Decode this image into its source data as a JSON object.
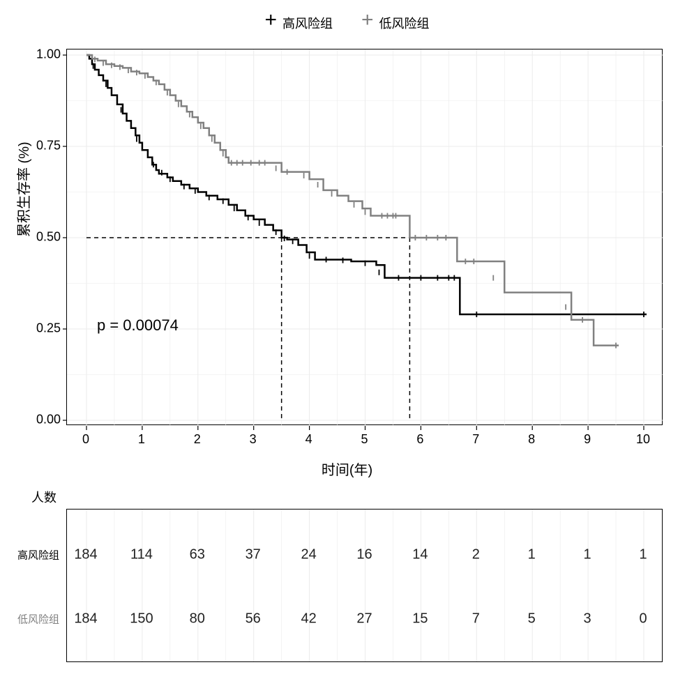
{
  "legend": {
    "items": [
      {
        "label": "高风险组",
        "color": "#000000"
      },
      {
        "label": "低风险组",
        "color": "#808080"
      }
    ]
  },
  "chart": {
    "type": "kaplan-meier",
    "x_label": "时间(年)",
    "y_label": "累积生存率 (%)",
    "label_fontsize": 20,
    "tick_fontsize": 18,
    "pvalue_text": "p = 0.00074",
    "pvalue_fontsize": 22,
    "pvalue_pos": {
      "x_year": 0.2,
      "y_prob": 0.26
    },
    "background_color": "#ffffff",
    "border_color": "#000000",
    "grid_color": "#ebebeb",
    "grid_width": 1,
    "line_width": 2.5,
    "censor_tick_height": 8,
    "xlim": [
      0,
      10
    ],
    "ylim": [
      0,
      1
    ],
    "xticks": [
      0,
      1,
      2,
      3,
      4,
      5,
      6,
      7,
      8,
      9,
      10
    ],
    "yticks": [
      0.0,
      0.25,
      0.5,
      0.75,
      1.0
    ],
    "ytick_labels": [
      "0.00",
      "0.25",
      "0.50",
      "0.75",
      "1.00"
    ],
    "xminor": [
      0.5,
      1.5,
      2.5,
      3.5,
      4.5,
      5.5,
      6.5,
      7.5,
      8.5,
      9.5
    ],
    "yminor": [
      0.125,
      0.375,
      0.625,
      0.875
    ],
    "median_lines": {
      "y": 0.5,
      "x_values": [
        3.5,
        5.8
      ],
      "color": "#000000",
      "dash": "6,5",
      "width": 1.5
    },
    "series": [
      {
        "name": "high_risk",
        "color": "#000000",
        "steps": [
          [
            0.0,
            1.0
          ],
          [
            0.05,
            0.99
          ],
          [
            0.1,
            0.975
          ],
          [
            0.15,
            0.96
          ],
          [
            0.22,
            0.945
          ],
          [
            0.3,
            0.93
          ],
          [
            0.38,
            0.91
          ],
          [
            0.45,
            0.89
          ],
          [
            0.55,
            0.865
          ],
          [
            0.65,
            0.84
          ],
          [
            0.72,
            0.82
          ],
          [
            0.8,
            0.8
          ],
          [
            0.88,
            0.78
          ],
          [
            0.95,
            0.76
          ],
          [
            1.0,
            0.74
          ],
          [
            1.1,
            0.72
          ],
          [
            1.18,
            0.7
          ],
          [
            1.25,
            0.685
          ],
          [
            1.3,
            0.675
          ],
          [
            1.45,
            0.665
          ],
          [
            1.55,
            0.655
          ],
          [
            1.7,
            0.645
          ],
          [
            1.85,
            0.635
          ],
          [
            2.0,
            0.625
          ],
          [
            2.15,
            0.615
          ],
          [
            2.35,
            0.605
          ],
          [
            2.55,
            0.59
          ],
          [
            2.7,
            0.575
          ],
          [
            2.85,
            0.56
          ],
          [
            3.0,
            0.55
          ],
          [
            3.2,
            0.535
          ],
          [
            3.35,
            0.52
          ],
          [
            3.5,
            0.5
          ],
          [
            3.6,
            0.495
          ],
          [
            3.8,
            0.48
          ],
          [
            3.95,
            0.46
          ],
          [
            4.1,
            0.44
          ],
          [
            4.4,
            0.44
          ],
          [
            4.75,
            0.435
          ],
          [
            5.2,
            0.425
          ],
          [
            5.35,
            0.39
          ],
          [
            5.9,
            0.39
          ],
          [
            6.5,
            0.39
          ],
          [
            6.7,
            0.29
          ],
          [
            7.5,
            0.29
          ],
          [
            8.5,
            0.29
          ],
          [
            10.05,
            0.29
          ]
        ],
        "censors": [
          [
            0.12,
            0.97
          ],
          [
            0.35,
            0.92
          ],
          [
            0.62,
            0.85
          ],
          [
            0.9,
            0.77
          ],
          [
            1.2,
            0.7
          ],
          [
            1.35,
            0.678
          ],
          [
            1.5,
            0.66
          ],
          [
            1.75,
            0.64
          ],
          [
            1.95,
            0.628
          ],
          [
            2.2,
            0.61
          ],
          [
            2.45,
            0.6
          ],
          [
            2.65,
            0.58
          ],
          [
            2.9,
            0.555
          ],
          [
            3.1,
            0.54
          ],
          [
            3.4,
            0.515
          ],
          [
            3.55,
            0.498
          ],
          [
            3.7,
            0.49
          ],
          [
            4.0,
            0.45
          ],
          [
            4.3,
            0.44
          ],
          [
            4.6,
            0.438
          ],
          [
            5.0,
            0.43
          ],
          [
            5.25,
            0.405
          ],
          [
            5.6,
            0.39
          ],
          [
            6.0,
            0.39
          ],
          [
            6.3,
            0.39
          ],
          [
            6.5,
            0.39
          ],
          [
            6.6,
            0.39
          ],
          [
            7.0,
            0.29
          ],
          [
            10.0,
            0.29
          ]
        ]
      },
      {
        "name": "low_risk",
        "color": "#808080",
        "steps": [
          [
            0.0,
            1.0
          ],
          [
            0.1,
            0.99
          ],
          [
            0.2,
            0.985
          ],
          [
            0.35,
            0.975
          ],
          [
            0.5,
            0.97
          ],
          [
            0.65,
            0.965
          ],
          [
            0.8,
            0.955
          ],
          [
            0.95,
            0.95
          ],
          [
            1.1,
            0.94
          ],
          [
            1.2,
            0.93
          ],
          [
            1.3,
            0.92
          ],
          [
            1.4,
            0.905
          ],
          [
            1.5,
            0.89
          ],
          [
            1.6,
            0.875
          ],
          [
            1.7,
            0.86
          ],
          [
            1.8,
            0.845
          ],
          [
            1.9,
            0.83
          ],
          [
            2.0,
            0.815
          ],
          [
            2.1,
            0.8
          ],
          [
            2.2,
            0.78
          ],
          [
            2.3,
            0.76
          ],
          [
            2.4,
            0.74
          ],
          [
            2.5,
            0.72
          ],
          [
            2.55,
            0.705
          ],
          [
            3.3,
            0.705
          ],
          [
            3.5,
            0.68
          ],
          [
            3.8,
            0.68
          ],
          [
            4.0,
            0.66
          ],
          [
            4.25,
            0.63
          ],
          [
            4.5,
            0.615
          ],
          [
            4.7,
            0.6
          ],
          [
            4.95,
            0.58
          ],
          [
            5.1,
            0.56
          ],
          [
            5.6,
            0.56
          ],
          [
            5.8,
            0.5
          ],
          [
            5.95,
            0.5
          ],
          [
            6.5,
            0.5
          ],
          [
            6.65,
            0.435
          ],
          [
            7.1,
            0.435
          ],
          [
            7.5,
            0.35
          ],
          [
            8.55,
            0.35
          ],
          [
            8.7,
            0.275
          ],
          [
            9.0,
            0.275
          ],
          [
            9.1,
            0.205
          ],
          [
            9.55,
            0.205
          ]
        ],
        "censors": [
          [
            0.15,
            0.988
          ],
          [
            0.3,
            0.978
          ],
          [
            0.45,
            0.972
          ],
          [
            0.6,
            0.967
          ],
          [
            0.75,
            0.958
          ],
          [
            0.9,
            0.952
          ],
          [
            1.05,
            0.943
          ],
          [
            1.25,
            0.925
          ],
          [
            1.45,
            0.897
          ],
          [
            1.65,
            0.865
          ],
          [
            1.85,
            0.837
          ],
          [
            2.05,
            0.805
          ],
          [
            2.25,
            0.77
          ],
          [
            2.45,
            0.73
          ],
          [
            2.6,
            0.705
          ],
          [
            2.7,
            0.705
          ],
          [
            2.8,
            0.705
          ],
          [
            2.95,
            0.705
          ],
          [
            3.1,
            0.705
          ],
          [
            3.2,
            0.705
          ],
          [
            3.4,
            0.69
          ],
          [
            3.6,
            0.68
          ],
          [
            3.9,
            0.67
          ],
          [
            4.15,
            0.645
          ],
          [
            4.4,
            0.62
          ],
          [
            4.8,
            0.59
          ],
          [
            5.0,
            0.57
          ],
          [
            5.3,
            0.56
          ],
          [
            5.4,
            0.56
          ],
          [
            5.5,
            0.56
          ],
          [
            5.55,
            0.56
          ],
          [
            5.9,
            0.5
          ],
          [
            6.1,
            0.5
          ],
          [
            6.3,
            0.5
          ],
          [
            6.45,
            0.5
          ],
          [
            6.8,
            0.435
          ],
          [
            6.95,
            0.435
          ],
          [
            7.3,
            0.39
          ],
          [
            8.6,
            0.31
          ],
          [
            8.9,
            0.275
          ],
          [
            9.5,
            0.205
          ]
        ]
      }
    ]
  },
  "risk_table": {
    "title": "人数",
    "title_fontsize": 18,
    "cell_fontsize": 20,
    "label_fontsize": 15,
    "border_color": "#000000",
    "grid_color": "#ebebeb",
    "background_color": "#ffffff",
    "x_values": [
      0,
      1,
      2,
      3,
      4,
      5,
      6,
      7,
      8,
      9,
      10
    ],
    "rows": [
      {
        "label": "高风险组",
        "color": "#000000",
        "values": [
          184,
          114,
          63,
          37,
          24,
          16,
          14,
          2,
          1,
          1,
          1
        ]
      },
      {
        "label": "低风险组",
        "color": "#808080",
        "values": [
          184,
          150,
          80,
          56,
          42,
          27,
          15,
          7,
          5,
          3,
          0
        ]
      }
    ]
  }
}
